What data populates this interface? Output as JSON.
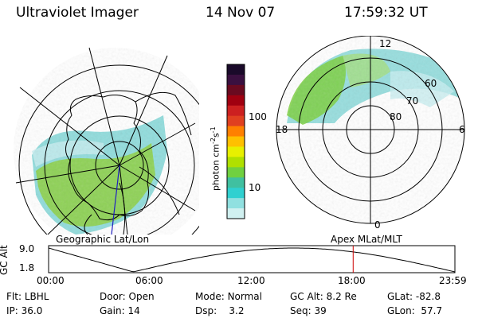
{
  "header": {
    "instrument": "Ultraviolet Imager",
    "date": "14 Nov 07",
    "time": "17:59:32 UT"
  },
  "left_map": {
    "projection_label": "Geographic Lat/Lon"
  },
  "right_map": {
    "projection_label": "Apex MLat/MLT",
    "mlt_labels": [
      "12",
      "18",
      "6",
      "0"
    ],
    "lat_labels": [
      "60",
      "70",
      "80"
    ]
  },
  "colorbar": {
    "unit_label": "photon cm",
    "unit_exp1": "-2",
    "unit_s": "s",
    "unit_exp2": "-1",
    "ticks": [
      "100",
      "10"
    ],
    "colors": [
      "#1a0a2a",
      "#3a1040",
      "#6a0a20",
      "#a00010",
      "#cc2020",
      "#e04020",
      "#ff8000",
      "#ffc000",
      "#e8f000",
      "#b0e000",
      "#70d040",
      "#40c0a0",
      "#30d0d0",
      "#90e0e0",
      "#d0f0f0"
    ]
  },
  "altitude_plot": {
    "ylabel": "GC Alt",
    "y_ticks": [
      "9.0",
      "1.8"
    ],
    "x_ticks": [
      "00:00",
      "06:00",
      "12:00",
      "18:00",
      "23:59"
    ],
    "current_marker_hour": 17.99,
    "marker_color": "#cc0000"
  },
  "status": {
    "filter_label": "Flt:",
    "filter": "LBHL",
    "ip_label": "IP:",
    "ip": "36.0",
    "door_label": "Door:",
    "door": "Open",
    "gain_label": "Gain:",
    "gain": "14",
    "mode_label": "Mode:",
    "mode": "Normal",
    "dsp_label": "Dsp:",
    "dsp": "3.2",
    "gc_alt_label": "GC Alt:",
    "gc_alt": "8.2 Re",
    "seq_label": "Seq:",
    "seq": "39",
    "glat_label": "GLat:",
    "glat": "-82.8",
    "glon_label": "GLon:",
    "glon": "57.7"
  }
}
